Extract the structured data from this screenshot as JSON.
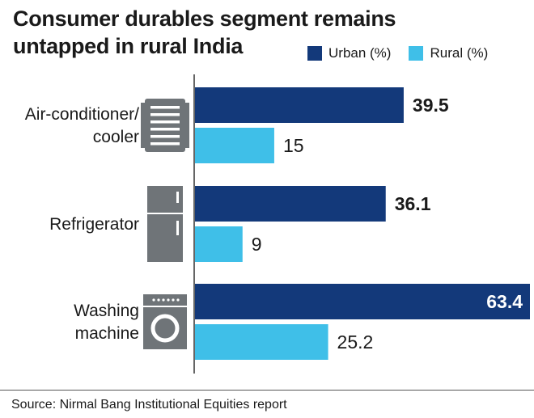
{
  "chart_data": {
    "type": "bar",
    "orientation": "horizontal",
    "title": [
      "Consumer durables segment remains",
      "untapped in rural India"
    ],
    "categories": [
      {
        "label": [
          "Air-conditioner/",
          "cooler"
        ],
        "icon": "air-conditioner-icon"
      },
      {
        "label": [
          "Refrigerator"
        ],
        "icon": "refrigerator-icon"
      },
      {
        "label": [
          "Washing",
          "machine"
        ],
        "icon": "washing-machine-icon"
      }
    ],
    "series": [
      {
        "name": "Urban (%)",
        "color": "#13397a",
        "values": [
          39.5,
          36.1,
          63.4
        ]
      },
      {
        "name": "Rural (%)",
        "color": "#3fbfe8",
        "values": [
          15,
          9,
          25.2
        ]
      }
    ],
    "value_labels": [
      [
        "39.5",
        "36.1",
        "63.4"
      ],
      [
        "15",
        "9",
        "25.2"
      ]
    ],
    "xlim": [
      0,
      63.4
    ],
    "grid": false,
    "legend_position": "top-right",
    "source": "Source: Nirmal Bang Institutional Equities report"
  }
}
